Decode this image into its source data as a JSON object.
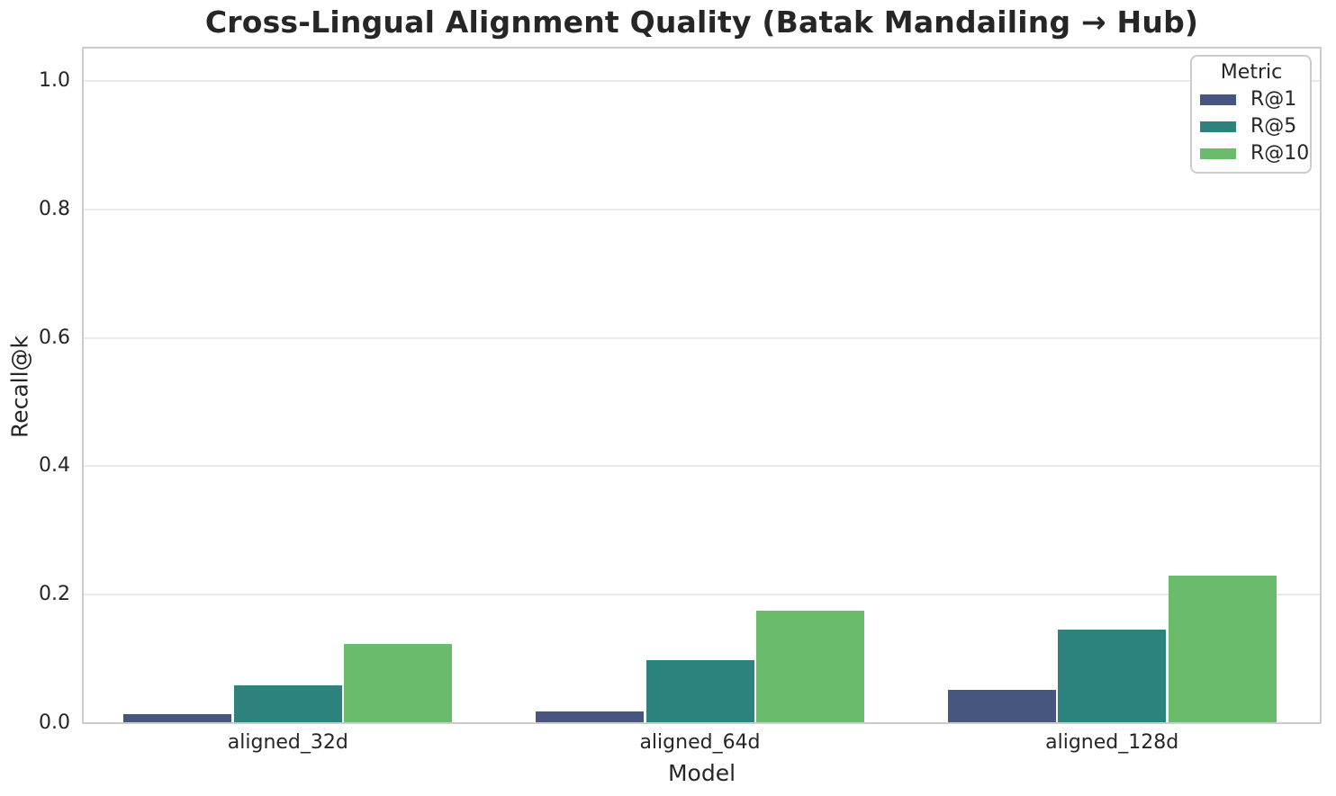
{
  "chart_data": {
    "type": "bar",
    "title": "Cross-Lingual Alignment Quality (Batak Mandailing → Hub)",
    "xlabel": "Model",
    "ylabel": "Recall@k",
    "legend_title": "Metric",
    "legend_position": "upper right",
    "grid": true,
    "categories": [
      "aligned_32d",
      "aligned_64d",
      "aligned_128d"
    ],
    "series": [
      {
        "name": "R@1",
        "color": "#46567E",
        "values": [
          0.012,
          0.017,
          0.051
        ]
      },
      {
        "name": "R@5",
        "color": "#2E827E",
        "values": [
          0.058,
          0.097,
          0.144
        ]
      },
      {
        "name": "R@10",
        "color": "#6ABC6C",
        "values": [
          0.122,
          0.173,
          0.228
        ]
      }
    ],
    "y_ticks": [
      0.0,
      0.2,
      0.4,
      0.6,
      0.8,
      1.0
    ],
    "ylim": [
      0,
      1.05
    ]
  },
  "colors": {
    "spine": "#cccccc",
    "grid": "#e9e9e9",
    "text": "#262626",
    "background": "#ffffff"
  }
}
